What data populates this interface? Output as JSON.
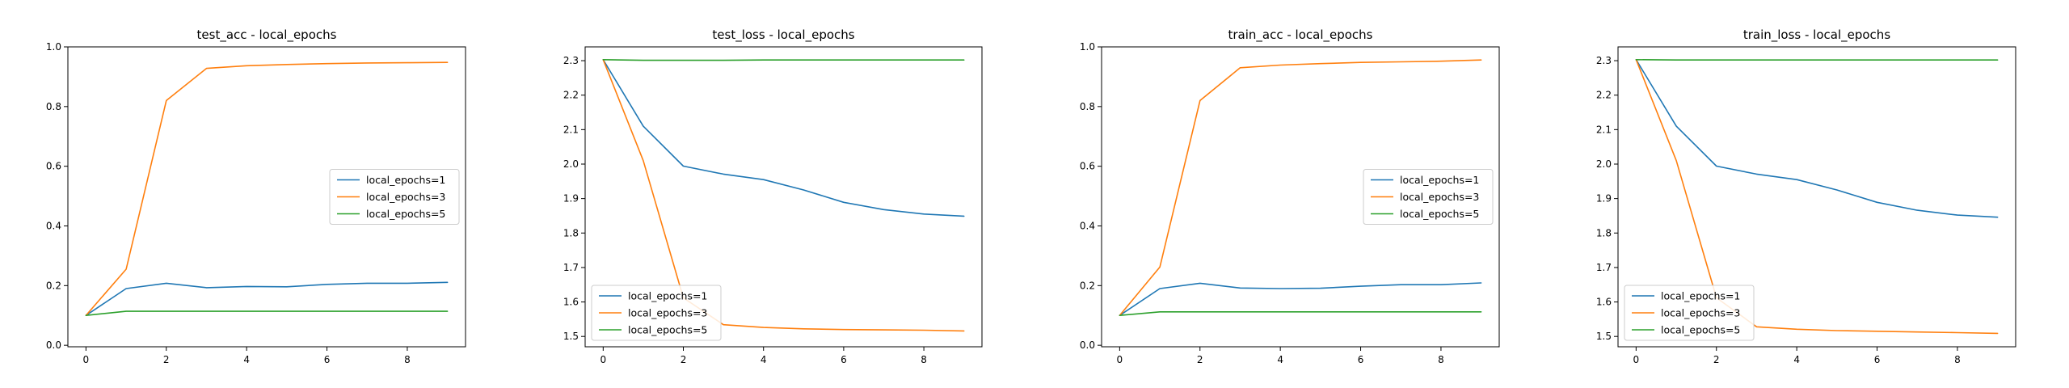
{
  "chart_data": [
    {
      "type": "line",
      "title": "test_acc - local_epochs",
      "xlabel": "",
      "ylabel": "",
      "x": [
        0,
        1,
        2,
        3,
        4,
        5,
        6,
        7,
        8,
        9
      ],
      "xlim": [
        -0.45,
        9.45
      ],
      "ylim": [
        -0.005,
        1.0
      ],
      "xticks": [
        0,
        2,
        4,
        6,
        8
      ],
      "yticks": [
        0.0,
        0.2,
        0.4,
        0.6,
        0.8,
        1.0
      ],
      "ytick_labels": [
        "0.0",
        "0.2",
        "0.4",
        "0.6",
        "0.8",
        "1.0"
      ],
      "legend": "center-right",
      "grid": false,
      "series": [
        {
          "name": "local_epochs=1",
          "color": "#1f77b4",
          "values": [
            0.1,
            0.19,
            0.208,
            0.193,
            0.197,
            0.196,
            0.204,
            0.208,
            0.208,
            0.211
          ]
        },
        {
          "name": "local_epochs=3",
          "color": "#ff7f0e",
          "values": [
            0.1,
            0.255,
            0.82,
            0.928,
            0.937,
            0.941,
            0.944,
            0.946,
            0.947,
            0.948
          ]
        },
        {
          "name": "local_epochs=5",
          "color": "#2ca02c",
          "values": [
            0.1,
            0.114,
            0.114,
            0.114,
            0.114,
            0.114,
            0.114,
            0.114,
            0.114,
            0.114
          ]
        }
      ]
    },
    {
      "type": "line",
      "title": "test_loss - local_epochs",
      "xlabel": "",
      "ylabel": "",
      "x": [
        0,
        1,
        2,
        3,
        4,
        5,
        6,
        7,
        8,
        9
      ],
      "xlim": [
        -0.45,
        9.45
      ],
      "ylim": [
        1.47,
        2.34
      ],
      "xticks": [
        0,
        2,
        4,
        6,
        8
      ],
      "yticks": [
        1.5,
        1.6,
        1.7,
        1.8,
        1.9,
        2.0,
        2.1,
        2.2,
        2.3
      ],
      "ytick_labels": [
        "1.5",
        "1.6",
        "1.7",
        "1.8",
        "1.9",
        "2.0",
        "2.1",
        "2.2",
        "2.3"
      ],
      "legend": "lower-left",
      "grid": false,
      "series": [
        {
          "name": "local_epochs=1",
          "color": "#1f77b4",
          "values": [
            2.303,
            2.11,
            1.994,
            1.971,
            1.955,
            1.925,
            1.889,
            1.868,
            1.855,
            1.849
          ]
        },
        {
          "name": "local_epochs=3",
          "color": "#ff7f0e",
          "values": [
            2.303,
            2.01,
            1.612,
            1.534,
            1.526,
            1.522,
            1.52,
            1.519,
            1.518,
            1.516
          ]
        },
        {
          "name": "local_epochs=5",
          "color": "#2ca02c",
          "values": [
            2.303,
            2.301,
            2.301,
            2.301,
            2.302,
            2.302,
            2.302,
            2.302,
            2.302,
            2.302
          ]
        }
      ]
    },
    {
      "type": "line",
      "title": "train_acc - local_epochs",
      "xlabel": "",
      "ylabel": "",
      "x": [
        0,
        1,
        2,
        3,
        4,
        5,
        6,
        7,
        8,
        9
      ],
      "xlim": [
        -0.45,
        9.45
      ],
      "ylim": [
        -0.005,
        1.0
      ],
      "xticks": [
        0,
        2,
        4,
        6,
        8
      ],
      "yticks": [
        0.0,
        0.2,
        0.4,
        0.6,
        0.8,
        1.0
      ],
      "ytick_labels": [
        "0.0",
        "0.2",
        "0.4",
        "0.6",
        "0.8",
        "1.0"
      ],
      "legend": "center-right",
      "grid": false,
      "series": [
        {
          "name": "local_epochs=1",
          "color": "#1f77b4",
          "values": [
            0.1,
            0.19,
            0.208,
            0.192,
            0.19,
            0.191,
            0.198,
            0.203,
            0.203,
            0.209
          ]
        },
        {
          "name": "local_epochs=3",
          "color": "#ff7f0e",
          "values": [
            0.1,
            0.262,
            0.82,
            0.93,
            0.939,
            0.944,
            0.948,
            0.95,
            0.952,
            0.956
          ]
        },
        {
          "name": "local_epochs=5",
          "color": "#2ca02c",
          "values": [
            0.1,
            0.112,
            0.112,
            0.112,
            0.112,
            0.112,
            0.112,
            0.112,
            0.112,
            0.112
          ]
        }
      ]
    },
    {
      "type": "line",
      "title": "train_loss - local_epochs",
      "xlabel": "",
      "ylabel": "",
      "x": [
        0,
        1,
        2,
        3,
        4,
        5,
        6,
        7,
        8,
        9
      ],
      "xlim": [
        -0.45,
        9.45
      ],
      "ylim": [
        1.47,
        2.34
      ],
      "xticks": [
        0,
        2,
        4,
        6,
        8
      ],
      "yticks": [
        1.5,
        1.6,
        1.7,
        1.8,
        1.9,
        2.0,
        2.1,
        2.2,
        2.3
      ],
      "ytick_labels": [
        "1.5",
        "1.6",
        "1.7",
        "1.8",
        "1.9",
        "2.0",
        "2.1",
        "2.2",
        "2.3"
      ],
      "legend": "lower-left",
      "grid": false,
      "series": [
        {
          "name": "local_epochs=1",
          "color": "#1f77b4",
          "values": [
            2.303,
            2.11,
            1.994,
            1.971,
            1.955,
            1.925,
            1.889,
            1.866,
            1.852,
            1.846
          ]
        },
        {
          "name": "local_epochs=3",
          "color": "#ff7f0e",
          "values": [
            2.303,
            2.01,
            1.612,
            1.528,
            1.521,
            1.517,
            1.515,
            1.513,
            1.511,
            1.509
          ]
        },
        {
          "name": "local_epochs=5",
          "color": "#2ca02c",
          "values": [
            2.303,
            2.302,
            2.302,
            2.302,
            2.302,
            2.302,
            2.302,
            2.302,
            2.302,
            2.302
          ]
        }
      ]
    }
  ]
}
